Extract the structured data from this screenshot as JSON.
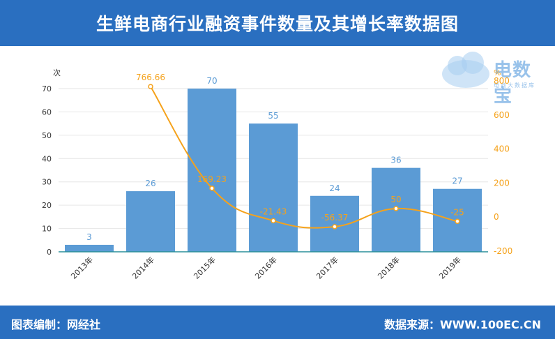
{
  "header": {
    "title": "生鲜电商行业融资事件数量及其增长率数据图"
  },
  "footer": {
    "left": "图表编制：网经社",
    "right": "数据来源：WWW.100EC.CN"
  },
  "watermark": {
    "text": "电数宝",
    "sub": "电商大数据库",
    "icon": "cloud-edt-logo-icon"
  },
  "colors": {
    "bar": "#5b9bd5",
    "line": "#f5a21b",
    "header": "#2a6fc0",
    "grid": "#e6e6e6"
  },
  "chart_data": {
    "type": "bar",
    "categories": [
      "2013年",
      "2014年",
      "2015年",
      "2016年",
      "2017年",
      "2018年",
      "2019年"
    ],
    "series": [
      {
        "type": "bar",
        "axis": "left",
        "values": [
          3,
          26,
          70,
          55,
          24,
          36,
          27
        ]
      },
      {
        "type": "line",
        "axis": "right",
        "values": [
          null,
          766.66,
          169.23,
          -21.43,
          -56.37,
          50,
          -25
        ]
      }
    ],
    "y_left": {
      "label": "次",
      "ylim": [
        0,
        70
      ],
      "ticks": [
        0,
        10,
        20,
        30,
        40,
        50,
        60,
        70
      ]
    },
    "y_right": {
      "label": "%",
      "ylim": [
        -200,
        800
      ],
      "ticks": [
        -200,
        0,
        200,
        400,
        600,
        800
      ]
    },
    "grid": true
  }
}
